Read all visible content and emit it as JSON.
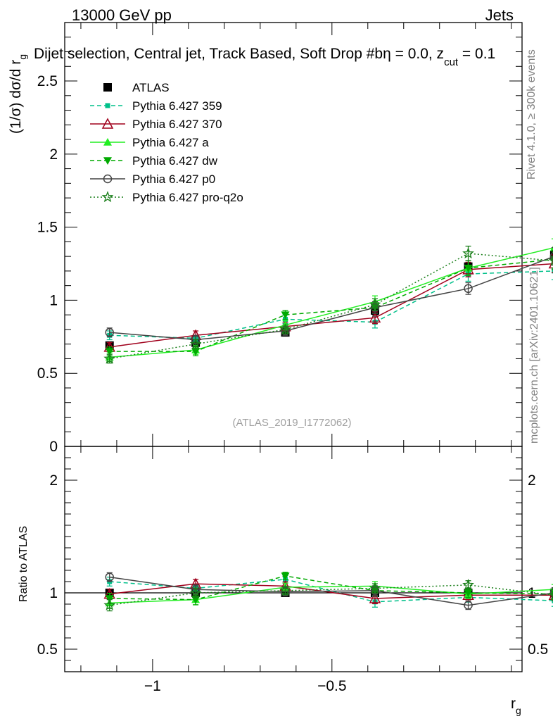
{
  "header": {
    "left": "13000 GeV pp",
    "right": "Jets",
    "plot_title": "Dijet selection, Central jet, Track Based, Soft Drop #b",
    "eta_part": "η = 0.0, z",
    "cut_sub": "cut",
    "beta_tail": " = 0.1"
  },
  "side_labels": {
    "rivet": "Rivet 4.1.0, ≥ 300k events",
    "mcplots": "mcplots.cern.ch [arXiv:2401.10621]"
  },
  "watermark": "(ATLAS_2019_I1772062)",
  "axes": {
    "ylabel_main": "(1/σ) dσ/d r",
    "ylabel_main_sub": "g",
    "ylabel_ratio": "Ratio to ATLAS",
    "xlabel": "r",
    "xlabel_sub": "g"
  },
  "chart_data": {
    "type": "line",
    "title": "Dijet selection, Central jet, Track Based, Soft Drop #bη = 0.0, z_cut = 0.1",
    "x": [
      -1.12,
      -0.88,
      -0.63,
      -0.38,
      -0.12,
      0.12
    ],
    "xlim": [
      -1.245,
      0.03
    ],
    "x_ticks": [
      -1,
      -0.5
    ],
    "x_tick_labels": [
      "−1",
      "−0.5"
    ],
    "main": {
      "ylim": [
        0,
        2.9
      ],
      "y_ticks": [
        0,
        0.5,
        1,
        1.5,
        2,
        2.5
      ],
      "y_tick_labels": [
        "0",
        "0.5",
        "1",
        "1.5",
        "2",
        "2.5"
      ]
    },
    "ratio": {
      "ylim": [
        0.3,
        2.3
      ],
      "y_ticks": [
        0.5,
        1,
        2
      ],
      "y_tick_labels": [
        "0.5",
        "1",
        "2"
      ],
      "reference": 1
    },
    "series": [
      {
        "name": "ATLAS",
        "color": "#000000",
        "marker": "square",
        "line": "none",
        "values": [
          0.69,
          0.71,
          0.78,
          0.93,
          1.23,
          1.31
        ],
        "errors": [
          0.02,
          0.02,
          0.02,
          0.03,
          0.04,
          0.05
        ],
        "ratio": [
          1.0,
          1.0,
          1.0,
          1.0,
          1.0,
          1.0
        ]
      },
      {
        "name": "Pythia 6.427 359",
        "color": "#00c08a",
        "marker": "square-small",
        "line": "dashed",
        "values": [
          0.76,
          0.74,
          0.87,
          0.85,
          1.18,
          1.2
        ],
        "errors": [
          0.03,
          0.02,
          0.03,
          0.04,
          0.05,
          0.06
        ],
        "ratio": [
          1.1,
          1.04,
          1.12,
          0.92,
          0.96,
          0.93
        ]
      },
      {
        "name": "Pythia 6.427 370",
        "color": "#a0001c",
        "marker": "triangle-open",
        "line": "solid",
        "values": [
          0.68,
          0.76,
          0.82,
          0.88,
          1.21,
          1.25
        ],
        "errors": [
          0.03,
          0.03,
          0.03,
          0.04,
          0.05,
          0.06
        ],
        "ratio": [
          0.99,
          1.08,
          1.06,
          0.95,
          0.98,
          0.98
        ]
      },
      {
        "name": "Pythia 6.427 a",
        "color": "#22ee22",
        "marker": "triangle",
        "line": "solid",
        "values": [
          0.61,
          0.66,
          0.83,
          0.99,
          1.22,
          1.36
        ],
        "errors": [
          0.03,
          0.03,
          0.03,
          0.04,
          0.05,
          0.06
        ],
        "ratio": [
          0.91,
          0.94,
          1.05,
          1.06,
          0.99,
          1.03
        ]
      },
      {
        "name": "Pythia 6.427 dw",
        "color": "#00aa00",
        "marker": "triangle-down",
        "line": "dashed",
        "values": [
          0.65,
          0.65,
          0.9,
          0.95,
          1.22,
          1.28
        ],
        "errors": [
          0.03,
          0.03,
          0.03,
          0.04,
          0.05,
          0.06
        ],
        "ratio": [
          0.95,
          0.94,
          1.15,
          1.02,
          1.0,
          0.99
        ]
      },
      {
        "name": "Pythia 6.427 p0",
        "color": "#444444",
        "marker": "circle-open",
        "line": "solid",
        "values": [
          0.78,
          0.73,
          0.79,
          0.95,
          1.08,
          1.3
        ],
        "errors": [
          0.03,
          0.03,
          0.03,
          0.04,
          0.04,
          0.06
        ],
        "ratio": [
          1.14,
          1.03,
          1.01,
          1.02,
          0.89,
          1.0
        ]
      },
      {
        "name": "Pythia 6.427 pro-q2o",
        "color": "#1a7f1a",
        "marker": "star",
        "line": "dotted",
        "values": [
          0.6,
          0.7,
          0.8,
          0.97,
          1.32,
          1.27
        ],
        "errors": [
          0.03,
          0.03,
          0.03,
          0.04,
          0.05,
          0.06
        ],
        "ratio": [
          0.89,
          1.0,
          1.02,
          1.04,
          1.07,
          0.98
        ]
      }
    ]
  }
}
